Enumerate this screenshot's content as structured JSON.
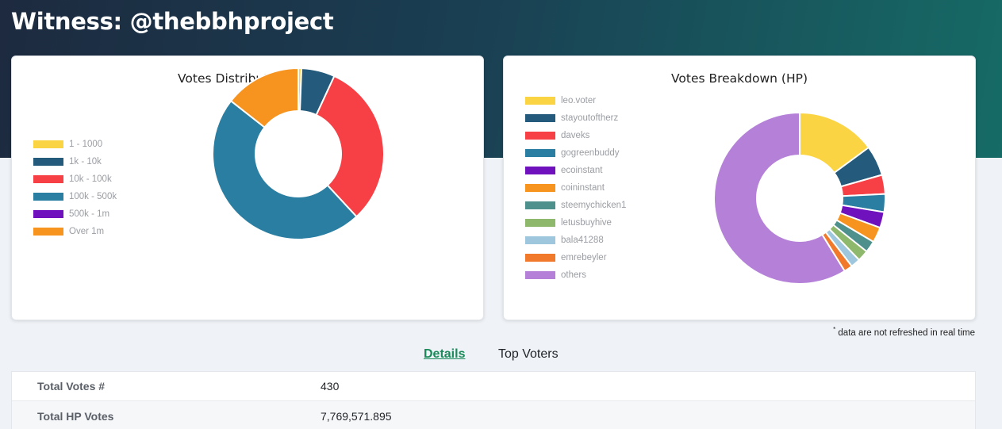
{
  "page": {
    "title": "Witness: @thebbhproject"
  },
  "colors": {
    "accent": "#1b8a5a",
    "hero_start": "#1d2a3f",
    "hero_end": "#166b66"
  },
  "chart_data": [
    {
      "type": "pie",
      "variant": "doughnut",
      "title": "Votes Distribution (HP)",
      "categories": [
        "1 - 1000",
        "1k - 10k",
        "10k - 100k",
        "100k - 500k",
        "500k - 1m",
        "Over 1m"
      ],
      "values": [
        0.6,
        6.3,
        31.2,
        47.5,
        0,
        14.4
      ],
      "colors": [
        "#fbd444",
        "#245a7b",
        "#f64046",
        "#2a7ea2",
        "#6f12bd",
        "#f7941f"
      ],
      "legend": "left"
    },
    {
      "type": "pie",
      "variant": "doughnut",
      "title": "Votes Breakdown (HP)",
      "categories": [
        "leo.voter",
        "stayoutoftherz",
        "daveks",
        "gogreenbuddy",
        "ecoinstant",
        "coininstant",
        "steemychicken1",
        "letusbuyhive",
        "bala41288",
        "emrebeyler",
        "others"
      ],
      "values": [
        14.9,
        5.7,
        3.6,
        3.4,
        3.0,
        2.9,
        2.2,
        2.1,
        1.8,
        1.6,
        58.8
      ],
      "colors": [
        "#fbd444",
        "#245a7b",
        "#f64046",
        "#2a7ea2",
        "#6f12bd",
        "#f7941f",
        "#4e918c",
        "#8eb96c",
        "#9ec6dc",
        "#f1792c",
        "#b480d8"
      ],
      "legend": "top-left"
    }
  ],
  "note": {
    "star": "*",
    "text": " data are not refreshed in real time"
  },
  "tabs": {
    "details": "Details",
    "top_voters": "Top Voters"
  },
  "details": [
    {
      "label": "Total Votes #",
      "value": "430"
    },
    {
      "label": "Total HP Votes",
      "value": "7,769,571.895"
    }
  ]
}
